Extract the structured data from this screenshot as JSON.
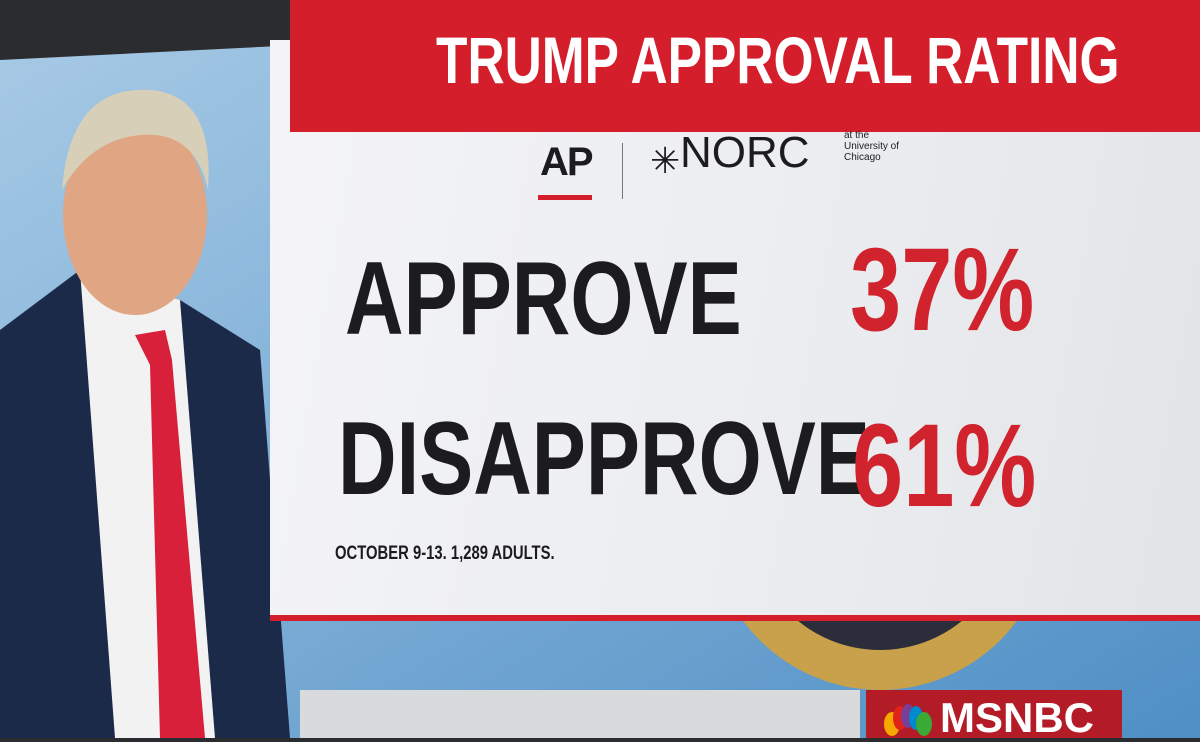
{
  "header": {
    "title": "TRUMP APPROVAL RATING"
  },
  "logos": {
    "ap": "AP",
    "norc": "NORC",
    "norc_sub": "at the University of Chicago"
  },
  "rows": [
    {
      "label": "APPROVE",
      "value": "37%"
    },
    {
      "label": "DISAPPROVE",
      "value": "61%"
    }
  ],
  "footnote": "OCTOBER 9-13. 1,289 ADULTS.",
  "network": "MSNBC"
}
